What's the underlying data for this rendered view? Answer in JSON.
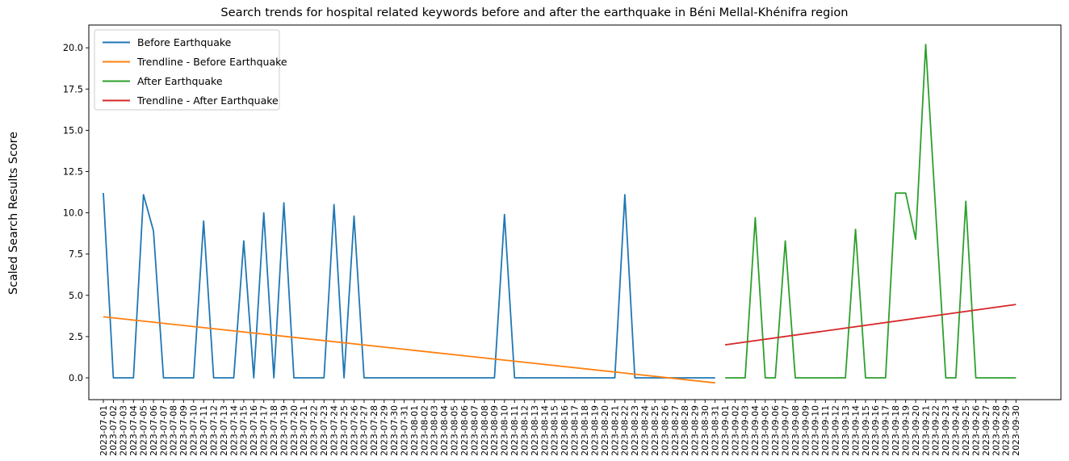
{
  "chart_data": {
    "type": "line",
    "title": "Search trends for hospital related keywords before and after the earthquake in Béni Mellal-Khénifra region",
    "xlabel": "",
    "ylabel": "Scaled Search Results Score",
    "grid": false,
    "ylim": [
      -1.32,
      21.38
    ],
    "ytick_labels": [
      "0.0",
      "2.5",
      "5.0",
      "7.5",
      "10.0",
      "12.5",
      "15.0",
      "17.5",
      "20.0"
    ],
    "x_dates": [
      "2023-07-01",
      "2023-07-02",
      "2023-07-03",
      "2023-07-04",
      "2023-07-05",
      "2023-07-06",
      "2023-07-07",
      "2023-07-08",
      "2023-07-09",
      "2023-07-10",
      "2023-07-11",
      "2023-07-12",
      "2023-07-13",
      "2023-07-14",
      "2023-07-15",
      "2023-07-16",
      "2023-07-17",
      "2023-07-18",
      "2023-07-19",
      "2023-07-20",
      "2023-07-21",
      "2023-07-22",
      "2023-07-23",
      "2023-07-24",
      "2023-07-25",
      "2023-07-26",
      "2023-07-27",
      "2023-07-28",
      "2023-07-29",
      "2023-07-30",
      "2023-07-31",
      "2023-08-01",
      "2023-08-02",
      "2023-08-03",
      "2023-08-04",
      "2023-08-05",
      "2023-08-06",
      "2023-08-07",
      "2023-08-08",
      "2023-08-09",
      "2023-08-10",
      "2023-08-11",
      "2023-08-12",
      "2023-08-13",
      "2023-08-14",
      "2023-08-15",
      "2023-08-16",
      "2023-08-17",
      "2023-08-18",
      "2023-08-19",
      "2023-08-20",
      "2023-08-21",
      "2023-08-22",
      "2023-08-23",
      "2023-08-24",
      "2023-08-25",
      "2023-08-26",
      "2023-08-27",
      "2023-08-28",
      "2023-08-29",
      "2023-08-30",
      "2023-08-31",
      "2023-09-01",
      "2023-09-02",
      "2023-09-03",
      "2023-09-04",
      "2023-09-05",
      "2023-09-06",
      "2023-09-07",
      "2023-09-08",
      "2023-09-09",
      "2023-09-10",
      "2023-09-11",
      "2023-09-12",
      "2023-09-13",
      "2023-09-14",
      "2023-09-15",
      "2023-09-16",
      "2023-09-17",
      "2023-09-18",
      "2023-09-19",
      "2023-09-20",
      "2023-09-21",
      "2023-09-22",
      "2023-09-23",
      "2023-09-24",
      "2023-09-25",
      "2023-09-26",
      "2023-09-27",
      "2023-09-28",
      "2023-09-29",
      "2023-09-30"
    ],
    "legend": {
      "position": "upper left",
      "entries": [
        {
          "label": "Before Earthquake",
          "color": "#1f77b4"
        },
        {
          "label": "Trendline - Before Earthquake",
          "color": "#ff7f0e"
        },
        {
          "label": "After Earthquake",
          "color": "#2ca02c"
        },
        {
          "label": "Trendline - After Earthquake",
          "color": "#d62728"
        }
      ]
    },
    "series": [
      {
        "name": "Before Earthquake",
        "color": "#1f77b4",
        "trend": false,
        "start_index": 0,
        "values": [
          11.2,
          0,
          0,
          0,
          11.1,
          8.9,
          0,
          0,
          0,
          0,
          9.5,
          0,
          0,
          0,
          8.3,
          0,
          10.0,
          0,
          10.6,
          0,
          0,
          0,
          0,
          10.5,
          0,
          9.8,
          0,
          0,
          0,
          0,
          0,
          0,
          0,
          0,
          0,
          0,
          0,
          0,
          0,
          0,
          9.9,
          0,
          0,
          0,
          0,
          0,
          0,
          0,
          0,
          0,
          0,
          0,
          11.1,
          0,
          0,
          0,
          0,
          0,
          0,
          0,
          0,
          0
        ]
      },
      {
        "name": "Trendline - Before Earthquake",
        "color": "#ff7f0e",
        "trend": true,
        "start_index": 0,
        "end_index": 61,
        "start_value": 3.7,
        "end_value": -0.3
      },
      {
        "name": "After Earthquake",
        "color": "#2ca02c",
        "trend": false,
        "start_index": 62,
        "values": [
          0,
          0,
          0,
          9.7,
          0,
          0,
          8.3,
          0,
          0,
          0,
          0,
          0,
          0,
          9.0,
          0,
          0,
          0,
          11.2,
          11.2,
          8.4,
          20.2,
          10.1,
          0,
          0,
          10.7,
          0,
          0,
          0,
          0,
          0
        ]
      },
      {
        "name": "Trendline - After Earthquake",
        "color": "#d62728",
        "trend": true,
        "start_index": 62,
        "end_index": 91,
        "start_value": 2.0,
        "end_value": 4.45
      }
    ]
  }
}
